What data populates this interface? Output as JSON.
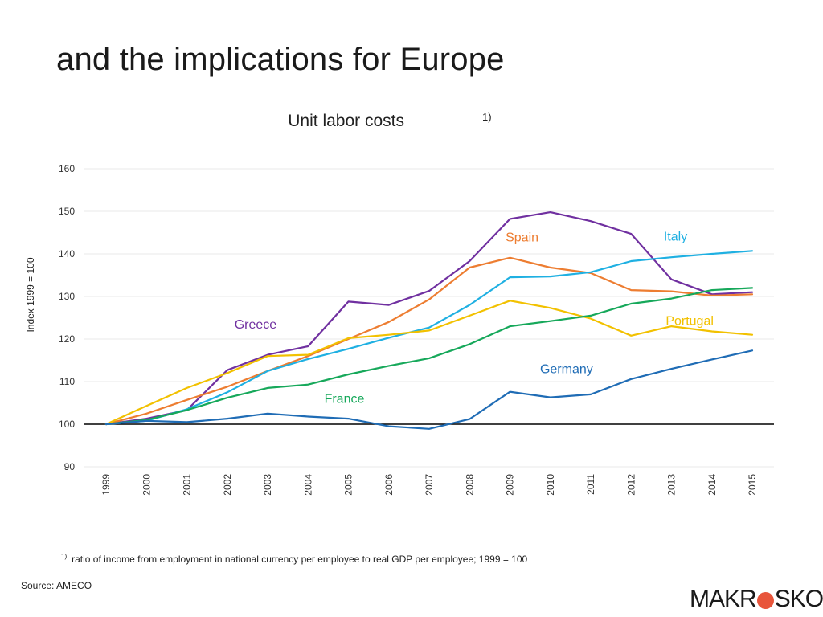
{
  "page": {
    "title": "and the implications for Europe",
    "footnote_marker": "1)",
    "footnote_text": "ratio of income from employment in national currency per employee to real GDP per employee; 1999 = 100",
    "source": "Source: AMECO",
    "logo_left": "MAKR",
    "logo_right": "SKOP"
  },
  "colors": {
    "title_rule": "#f0b08c",
    "grid": "#e8e8e8",
    "baseline": "#000000",
    "logo_accent": "#e8553b"
  },
  "chart_data": {
    "type": "line",
    "title": "Unit labor costs",
    "title_superscript": "1)",
    "xlabel": "",
    "ylabel": "Index 1999 = 100",
    "ylim": [
      90,
      160
    ],
    "yticks": [
      90,
      100,
      110,
      120,
      130,
      140,
      150,
      160
    ],
    "baseline_value": 100,
    "grid": true,
    "legend": "inline labels",
    "x": [
      "1999",
      "2000",
      "2001",
      "2002",
      "2003",
      "2004",
      "2005",
      "2006",
      "2007",
      "2008",
      "2009",
      "2010",
      "2011",
      "2012",
      "2013",
      "2014",
      "2015"
    ],
    "series": [
      {
        "name": "Greece",
        "color": "#7030a0",
        "label_position": "left-middle",
        "values": [
          100,
          101.3,
          103.3,
          112.7,
          116.3,
          118.3,
          128.8,
          128.0,
          131.3,
          138.3,
          148.2,
          149.8,
          147.7,
          144.7,
          134.0,
          130.5,
          131.0
        ]
      },
      {
        "name": "Spain",
        "color": "#ed7d31",
        "label_position": "top-center",
        "values": [
          100,
          102.5,
          105.7,
          108.8,
          112.5,
          116.0,
          120.0,
          124.0,
          129.3,
          136.8,
          139.1,
          136.8,
          135.5,
          131.5,
          131.2,
          130.2,
          130.5
        ]
      },
      {
        "name": "Italy",
        "color": "#1fb0e2",
        "label_position": "top-right",
        "values": [
          100,
          100.8,
          103.5,
          107.5,
          112.5,
          115.3,
          117.7,
          120.3,
          122.7,
          128.0,
          134.5,
          134.7,
          135.7,
          138.3,
          139.2,
          140.0,
          140.7
        ]
      },
      {
        "name": "Portugal",
        "color": "#f2c100",
        "label_position": "right-middle",
        "values": [
          100,
          104.3,
          108.5,
          112.0,
          116.0,
          116.3,
          120.2,
          121.0,
          122.0,
          125.5,
          129.0,
          127.3,
          124.8,
          120.8,
          123.0,
          121.8,
          121.0
        ]
      },
      {
        "name": "France",
        "color": "#16a85a",
        "label_position": "bottom-center",
        "values": [
          100,
          101.0,
          103.3,
          106.2,
          108.5,
          109.3,
          111.7,
          113.7,
          115.5,
          118.8,
          123.0,
          124.2,
          125.5,
          128.3,
          129.5,
          131.5,
          132.0
        ]
      },
      {
        "name": "Germany",
        "color": "#1f6cb5",
        "label_position": "bottom-right",
        "values": [
          100,
          100.8,
          100.5,
          101.3,
          102.5,
          101.8,
          101.3,
          99.5,
          98.9,
          101.2,
          107.6,
          106.3,
          107.0,
          110.6,
          113.0,
          115.2,
          117.3
        ]
      }
    ]
  }
}
